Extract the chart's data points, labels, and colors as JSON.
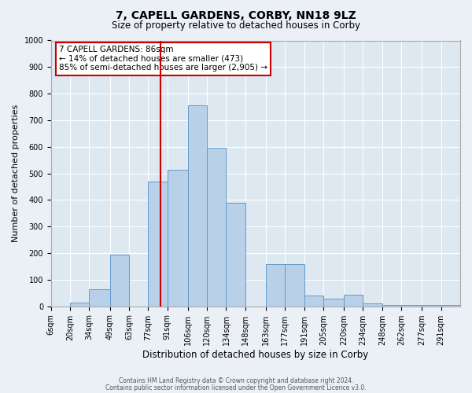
{
  "title": "7, CAPELL GARDENS, CORBY, NN18 9LZ",
  "subtitle": "Size of property relative to detached houses in Corby",
  "xlabel": "Distribution of detached houses by size in Corby",
  "ylabel": "Number of detached properties",
  "bin_labels": [
    "6sqm",
    "20sqm",
    "34sqm",
    "49sqm",
    "63sqm",
    "77sqm",
    "91sqm",
    "106sqm",
    "120sqm",
    "134sqm",
    "148sqm",
    "163sqm",
    "177sqm",
    "191sqm",
    "205sqm",
    "220sqm",
    "234sqm",
    "248sqm",
    "262sqm",
    "277sqm",
    "291sqm"
  ],
  "bin_left_edges": [
    6,
    20,
    34,
    49,
    63,
    77,
    91,
    106,
    120,
    134,
    148,
    163,
    177,
    191,
    205,
    220,
    234,
    248,
    262,
    277,
    291
  ],
  "bin_right_edges": [
    20,
    34,
    49,
    63,
    77,
    91,
    106,
    120,
    134,
    148,
    163,
    177,
    191,
    205,
    220,
    234,
    248,
    262,
    277,
    291,
    305
  ],
  "bar_values": [
    0,
    13,
    65,
    195,
    0,
    470,
    515,
    755,
    595,
    390,
    0,
    160,
    160,
    40,
    28,
    45,
    10,
    5,
    5,
    5,
    5
  ],
  "bar_color": "#b8d0e8",
  "bar_edge_color": "#6699cc",
  "marker_value": 86,
  "marker_color": "#cc0000",
  "annotation_title": "7 CAPELL GARDENS: 86sqm",
  "annotation_line1": "← 14% of detached houses are smaller (473)",
  "annotation_line2": "85% of semi-detached houses are larger (2,905) →",
  "annotation_box_facecolor": "#ffffff",
  "annotation_box_edgecolor": "#cc0000",
  "ylim": [
    0,
    1000
  ],
  "yticks": [
    0,
    100,
    200,
    300,
    400,
    500,
    600,
    700,
    800,
    900,
    1000
  ],
  "plot_bg_color": "#dde8f0",
  "fig_bg_color": "#eaf0f6",
  "title_fontsize": 10,
  "subtitle_fontsize": 8.5,
  "ylabel_fontsize": 8,
  "xlabel_fontsize": 8.5,
  "tick_fontsize": 7,
  "footer_line1": "Contains HM Land Registry data © Crown copyright and database right 2024.",
  "footer_line2": "Contains public sector information licensed under the Open Government Licence v3.0."
}
